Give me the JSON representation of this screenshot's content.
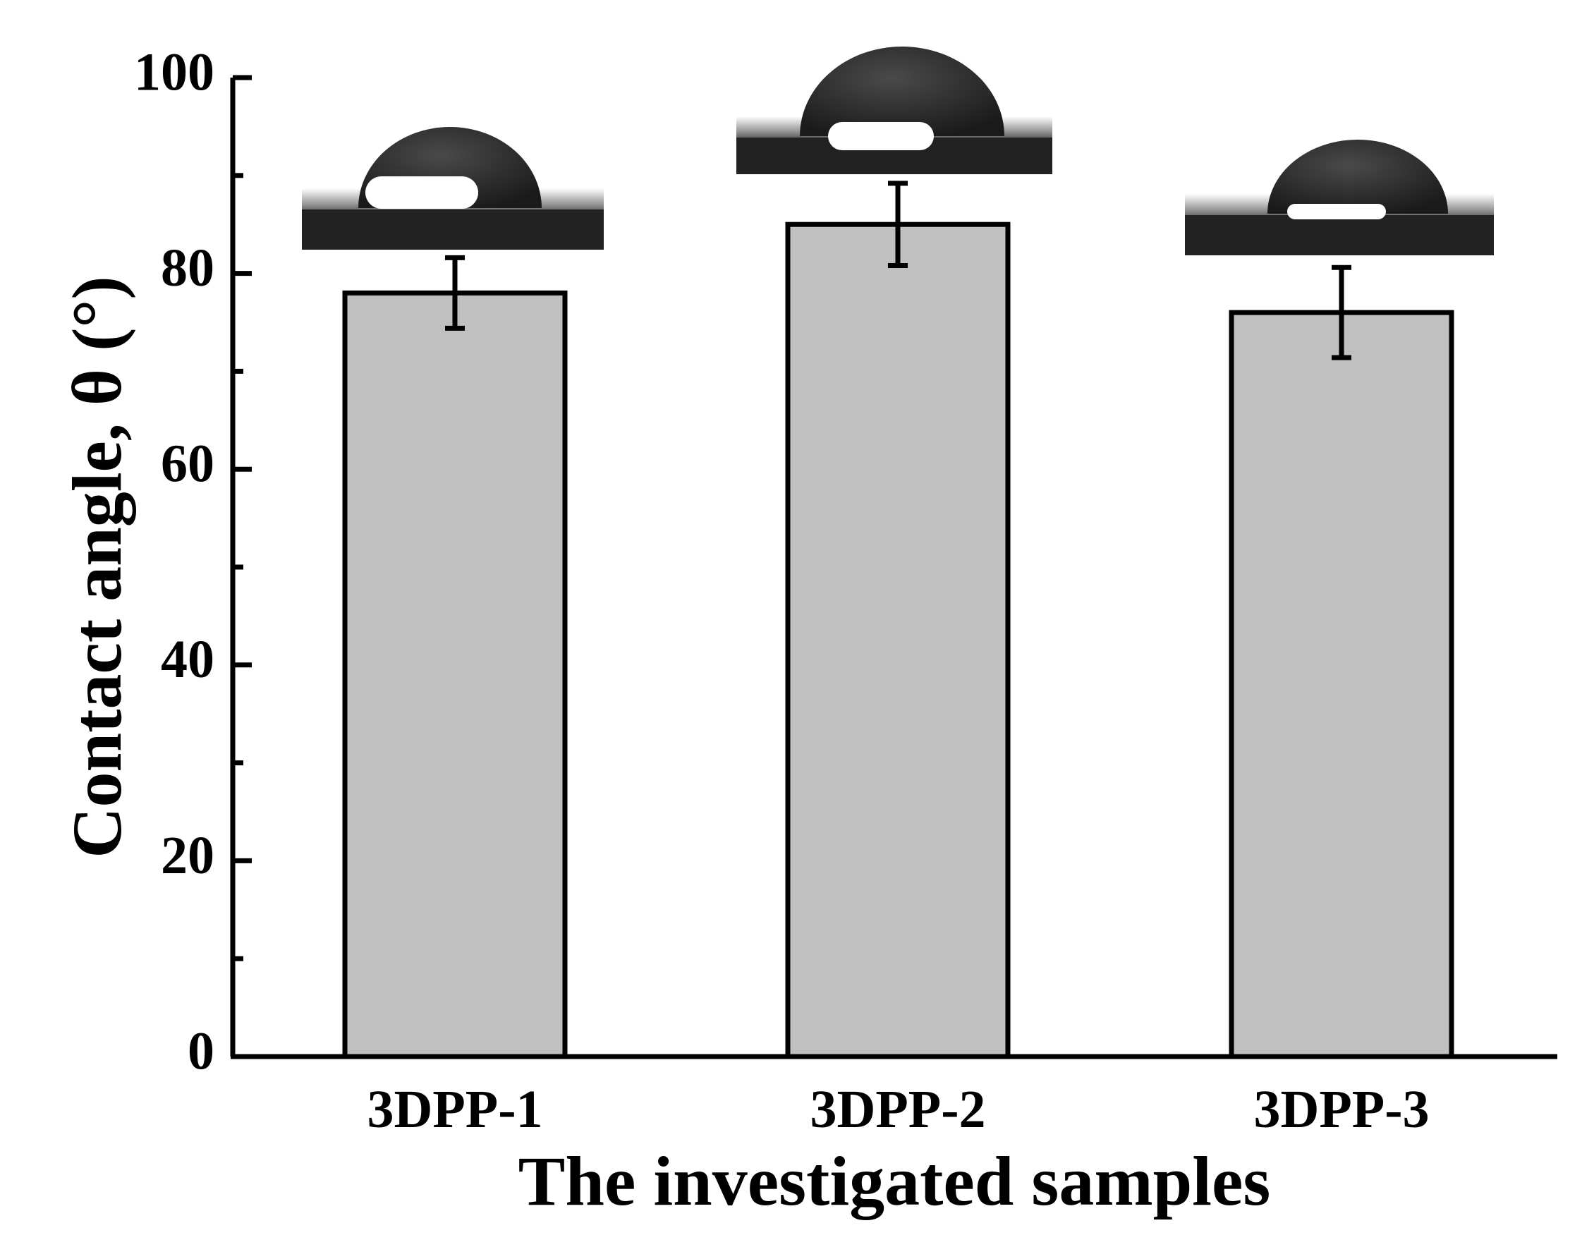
{
  "chart_data": {
    "type": "bar",
    "title": "",
    "xlabel": "The investigated samples",
    "ylabel": "Contact angle, θ (°)",
    "categories": [
      "3DPP-1",
      "3DPP-2",
      "3DPP-3"
    ],
    "values": [
      78,
      85,
      76
    ],
    "errors": [
      3.6,
      4.2,
      4.6
    ],
    "ylim": [
      0,
      100
    ],
    "yticks": [
      0,
      20,
      40,
      60,
      80,
      100
    ],
    "grid": false,
    "legend": "none",
    "colors": {
      "bar_fill": "#c0c0c0",
      "bar_stroke": "#000000",
      "axis": "#000000"
    },
    "insets": [
      "droplet photo 3DPP-1",
      "droplet photo 3DPP-2",
      "droplet photo 3DPP-3"
    ]
  }
}
